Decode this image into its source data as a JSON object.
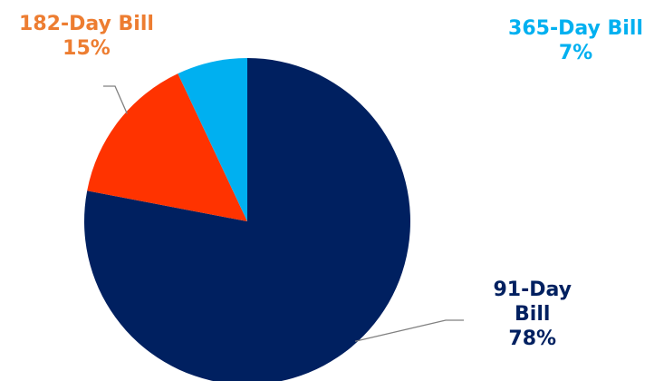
{
  "chart_data": {
    "type": "pie",
    "title": "",
    "start_angle_deg": 0,
    "direction": "clockwise",
    "slices": [
      {
        "name": "91-Day Bill",
        "label_lines": [
          "91-Day",
          "Bill"
        ],
        "percent_label": "78%",
        "value": 78,
        "color": "#002060",
        "label_color": "#002060"
      },
      {
        "name": "182-Day Bill",
        "label_lines": [
          "182-Day Bill"
        ],
        "percent_label": "15%",
        "value": 15,
        "color": "#FF3300",
        "label_color": "#ED7D31"
      },
      {
        "name": "365-Day Bill",
        "label_lines": [
          "365-Day Bill"
        ],
        "percent_label": "7%",
        "value": 7,
        "color": "#00B0F0",
        "label_color": "#00B0F0"
      }
    ]
  }
}
